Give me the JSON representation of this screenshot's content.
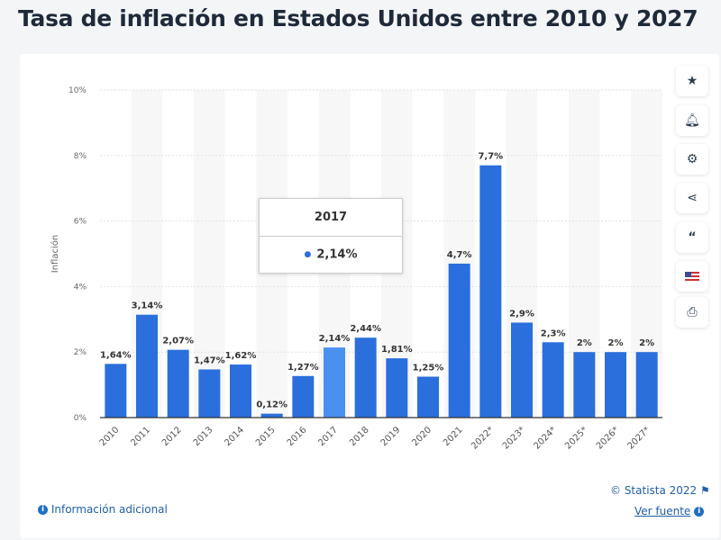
{
  "title": "Tasa de inflación en Estados Unidos entre 2010 y 2027",
  "chart_data": {
    "type": "bar",
    "categories": [
      "2010",
      "2011",
      "2012",
      "2013",
      "2014",
      "2015",
      "2016",
      "2017",
      "2018",
      "2019",
      "2020",
      "2021",
      "2022*",
      "2023*",
      "2024*",
      "2025*",
      "2026*",
      "2027*"
    ],
    "values": [
      1.64,
      3.14,
      2.07,
      1.47,
      1.62,
      0.12,
      1.27,
      2.14,
      2.44,
      1.81,
      1.25,
      4.7,
      7.7,
      2.9,
      2.3,
      2,
      2,
      2
    ],
    "labels": [
      "1,64%",
      "3,14%",
      "2,07%",
      "1,47%",
      "1,62%",
      "0,12%",
      "1,27%",
      "2,14%",
      "2,44%",
      "1,81%",
      "1,25%",
      "4,7%",
      "7,7%",
      "2,9%",
      "2,3%",
      "2%",
      "2%",
      "2%"
    ],
    "ylabel": "Inflación",
    "ylim": [
      0,
      10
    ],
    "yticks": [
      "0%",
      "2%",
      "4%",
      "6%",
      "8%",
      "10%"
    ],
    "highlighted": "2017",
    "colors": {
      "bar": "#2a6fdb",
      "highlight": "#4a90f0"
    },
    "grid": true
  },
  "tooltip": {
    "title": "2017",
    "value": "2,14%"
  },
  "sidebar": {
    "icons": [
      "star-icon",
      "bell-icon",
      "gear-icon",
      "share-icon",
      "quote-icon",
      "us-flag-icon",
      "print-icon"
    ]
  },
  "footer": {
    "copyright": "© Statista 2022",
    "source": "Ver fuente",
    "info": "Información adicional"
  }
}
